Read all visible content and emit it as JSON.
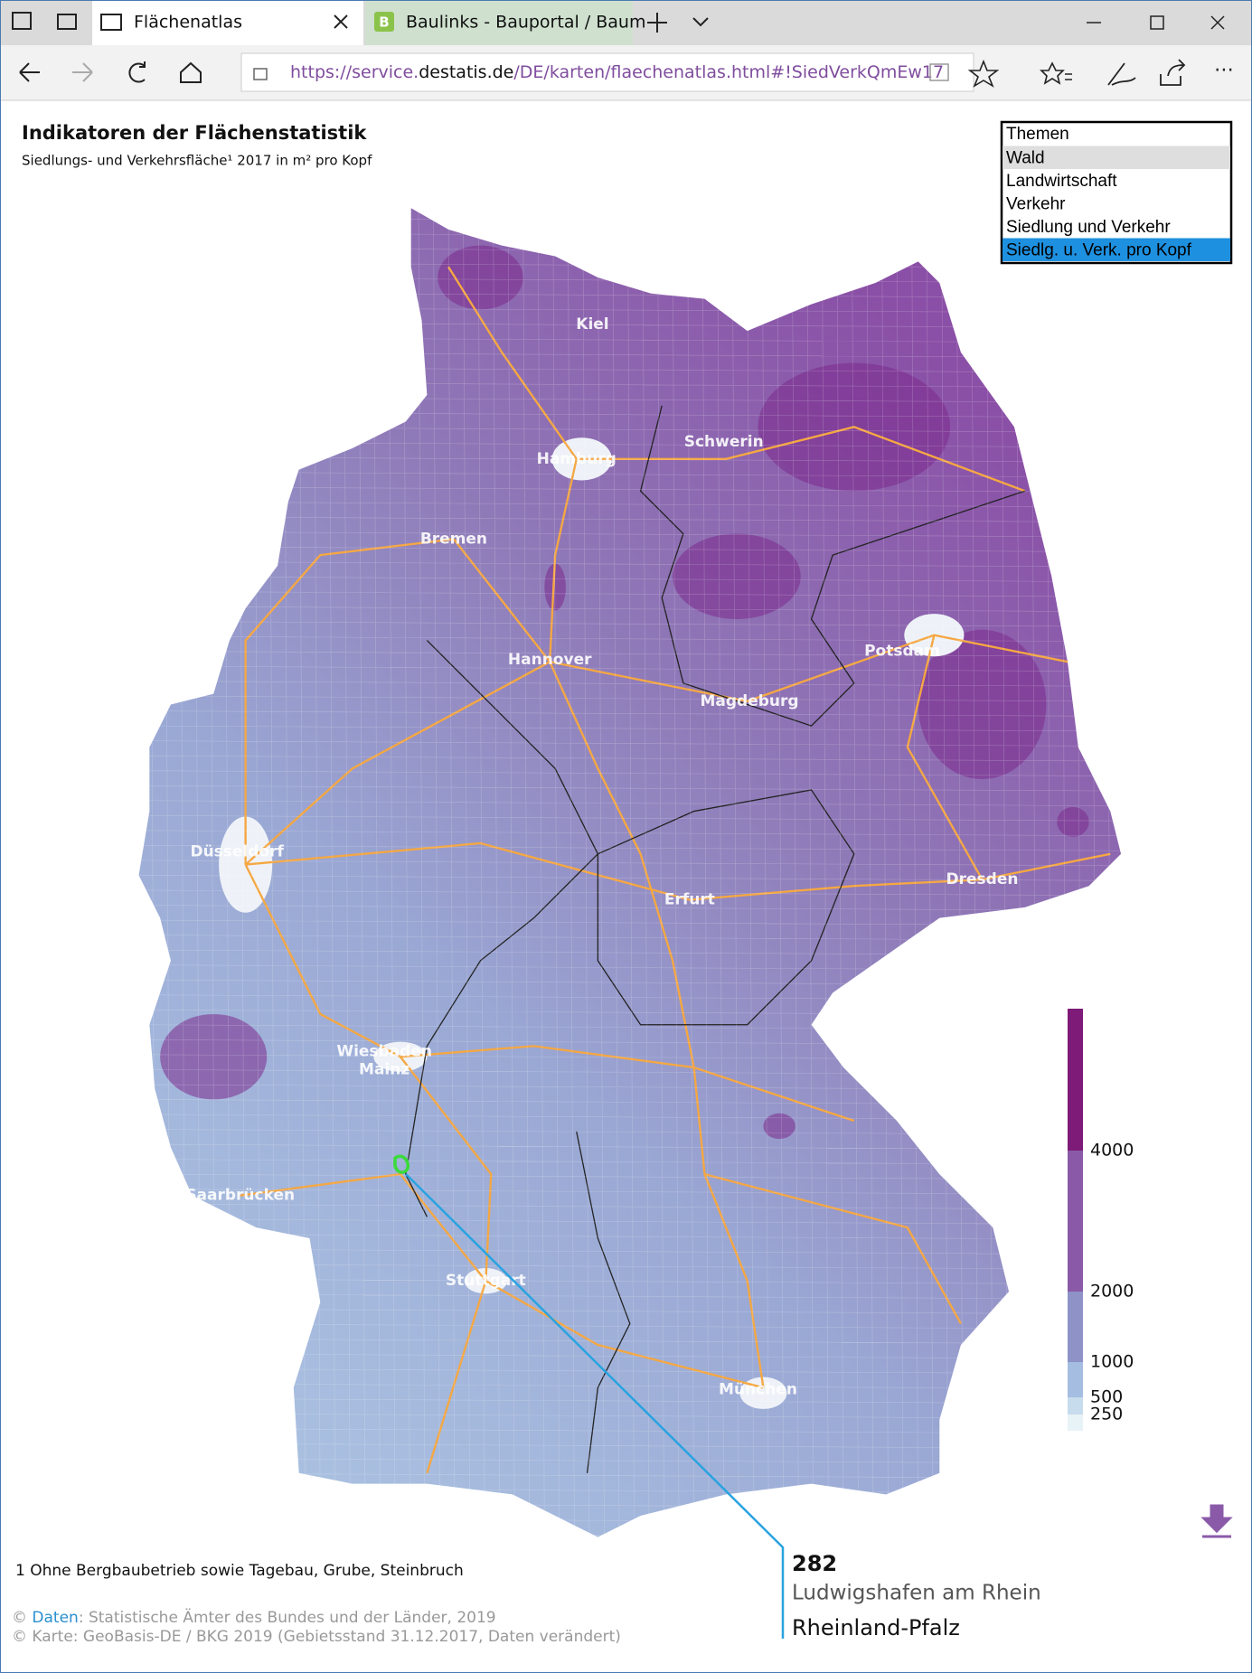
{
  "browser": {
    "tabs": [
      "Flächenatlas",
      "Baulinks - Bauportal / Baum"
    ],
    "url": {
      "prefix": "https://service.",
      "host": "destatis.de",
      "path": "/DE/karten/flaechenatlas.html#!SiedVerkQmEw17"
    }
  },
  "page": {
    "title": "Indikatoren der Flächenstatistik",
    "subtitle": "Siedlungs- und Verkehrsfläche¹ 2017 in m² pro Kopf"
  },
  "themes": {
    "header": "Themen",
    "items": [
      "Wald",
      "Landwirtschaft",
      "Verkehr",
      "Siedlung und Verkehr",
      "Siedlg. u. Verk. pro Kopf"
    ],
    "hovered": 0,
    "selected": 4
  },
  "map": {
    "cities": [
      "Kiel",
      "Hamburg",
      "Schwerin",
      "Bremen",
      "Hannover",
      "Potsdam",
      "Magdeburg",
      "Düsseldorf",
      "Dresden",
      "Erfurt",
      "Wiesbaden",
      "Mainz",
      "Saarbrücken",
      "Stuttgart",
      "München"
    ]
  },
  "legend": {
    "ticks": [
      4000,
      2000,
      1000,
      500,
      250
    ]
  },
  "tooltip": {
    "value": 282,
    "name": "Ludwigshafen am Rhein",
    "state": "Rheinland-Pfalz"
  },
  "footnote": "1 Ohne Bergbaubetrieb sowie Tagebau, Grube, Steinbruch",
  "credits": {
    "symbol": "©",
    "link": "Daten",
    "rest": ": Statistische Ämter des Bundes und der Länder, 2019",
    "line2": "© Karte: GeoBasis-DE / BKG 2019 (Gebietsstand 31.12.2017, Daten verändert)"
  }
}
